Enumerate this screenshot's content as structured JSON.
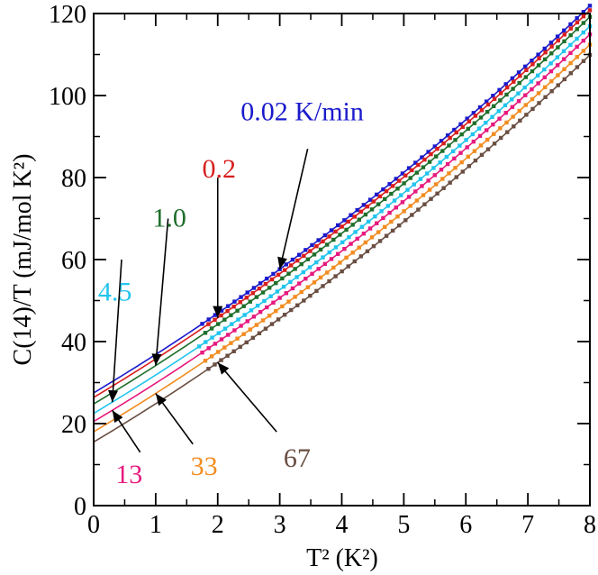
{
  "chart_data": {
    "type": "scatter",
    "title": "",
    "xlabel": "T² (K²)",
    "ylabel": "C(14)/T (mJ/mol K²)",
    "xlim": [
      0,
      8
    ],
    "ylim": [
      0,
      120
    ],
    "xticks": [
      0,
      1,
      2,
      3,
      4,
      5,
      6,
      7,
      8
    ],
    "yticks": [
      0,
      20,
      40,
      60,
      80,
      100,
      120
    ],
    "grid": false,
    "series": [
      {
        "name": "0.02 K/min",
        "label": "0.02 K/min",
        "color": "#1a1acc",
        "intercept": 27.5,
        "slope": 9.0,
        "curv": 0.35,
        "data_x_start": 1.75,
        "arrow_x": 3.0
      },
      {
        "name": "0.2",
        "label": "0.2",
        "color": "#d81e1e",
        "intercept": 26.4,
        "slope": 9.0,
        "curv": 0.35,
        "data_x_start": 1.85,
        "arrow_x": 2.0
      },
      {
        "name": "1.0",
        "label": "1.0",
        "color": "#1e6e2a",
        "intercept": 24.8,
        "slope": 9.0,
        "curv": 0.35,
        "data_x_start": 1.8,
        "arrow_x": 1.0
      },
      {
        "name": "4.5",
        "label": "4.5",
        "color": "#22c4ee",
        "intercept": 22.5,
        "slope": 9.0,
        "curv": 0.35,
        "data_x_start": 1.7,
        "arrow_x": 0.3
      },
      {
        "name": "13",
        "label": "13",
        "color": "#e6197e",
        "intercept": 20.5,
        "slope": 9.0,
        "curv": 0.35,
        "data_x_start": 1.75,
        "arrow_x": 0.3
      },
      {
        "name": "33",
        "label": "33",
        "color": "#f28c20",
        "intercept": 18.0,
        "slope": 9.0,
        "curv": 0.35,
        "data_x_start": 1.8,
        "arrow_x": 1.0
      },
      {
        "name": "67",
        "label": "67",
        "color": "#6a4e42",
        "intercept": 15.5,
        "slope": 9.0,
        "curv": 0.35,
        "data_x_start": 1.85,
        "arrow_x": 2.0
      }
    ]
  }
}
